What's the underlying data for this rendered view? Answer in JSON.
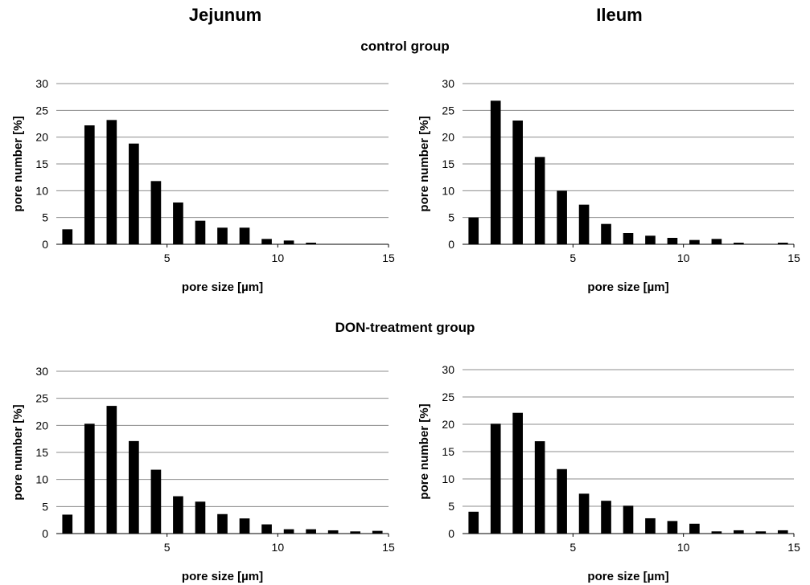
{
  "headers": {
    "jejunum": "Jejunum",
    "ileum": "Ileum",
    "control": "control group",
    "don": "DON-treatment group"
  },
  "chart_data": [
    {
      "type": "bar",
      "column": "Jejunum",
      "group": "control group",
      "xlabel": "pore size [µm]",
      "ylabel": "pore number [%]",
      "ylim": [
        0,
        30
      ],
      "xlim": [
        0,
        15
      ],
      "yticks": [
        "0",
        "5",
        "10",
        "15",
        "20",
        "25",
        "30"
      ],
      "xticks": [
        "5",
        "10",
        "15"
      ],
      "grid": true,
      "x": [
        1,
        2,
        3,
        4,
        5,
        6,
        7,
        8,
        9,
        10,
        11,
        12,
        13,
        14,
        15
      ],
      "values": [
        2.8,
        22.2,
        23.2,
        18.8,
        11.8,
        7.8,
        4.4,
        3.1,
        3.1,
        1.0,
        0.7,
        0.3,
        0.0,
        0.0,
        0.0
      ]
    },
    {
      "type": "bar",
      "column": "Ileum",
      "group": "control group",
      "xlabel": "pore size [µm]",
      "ylabel": "pore number [%]",
      "ylim": [
        0,
        30
      ],
      "xlim": [
        0,
        15
      ],
      "yticks": [
        "0",
        "5",
        "10",
        "15",
        "20",
        "25",
        "30"
      ],
      "xticks": [
        "5",
        "10",
        "15"
      ],
      "grid": true,
      "x": [
        1,
        2,
        3,
        4,
        5,
        6,
        7,
        8,
        9,
        10,
        11,
        12,
        13,
        14,
        15
      ],
      "values": [
        5.0,
        26.8,
        23.1,
        16.3,
        10.0,
        7.4,
        3.8,
        2.1,
        1.6,
        1.2,
        0.8,
        1.0,
        0.3,
        0.0,
        0.3
      ]
    },
    {
      "type": "bar",
      "column": "Jejunum",
      "group": "DON-treatment group",
      "xlabel": "pore size [µm]",
      "ylabel": "pore number [%]",
      "ylim": [
        0,
        30
      ],
      "xlim": [
        0,
        15
      ],
      "yticks": [
        "0",
        "5",
        "10",
        "15",
        "20",
        "25",
        "30"
      ],
      "xticks": [
        "5",
        "10",
        "15"
      ],
      "grid": true,
      "x": [
        1,
        2,
        3,
        4,
        5,
        6,
        7,
        8,
        9,
        10,
        11,
        12,
        13,
        14,
        15
      ],
      "values": [
        3.5,
        20.3,
        23.6,
        17.1,
        11.8,
        6.9,
        5.9,
        3.6,
        2.8,
        1.7,
        0.8,
        0.8,
        0.6,
        0.4,
        0.5
      ]
    },
    {
      "type": "bar",
      "column": "Ileum",
      "group": "DON-treatment group",
      "xlabel": "pore size [µm]",
      "ylabel": "pore number [%]",
      "ylim": [
        0,
        30
      ],
      "xlim": [
        0,
        15
      ],
      "yticks": [
        "0",
        "5",
        "10",
        "15",
        "20",
        "25",
        "30"
      ],
      "xticks": [
        "5",
        "10",
        "15"
      ],
      "grid": true,
      "x": [
        1,
        2,
        3,
        4,
        5,
        6,
        7,
        8,
        9,
        10,
        11,
        12,
        13,
        14,
        15
      ],
      "values": [
        4.0,
        20.1,
        22.1,
        16.9,
        11.8,
        7.3,
        6.0,
        5.1,
        2.8,
        2.3,
        1.8,
        0.4,
        0.6,
        0.4,
        0.6
      ]
    }
  ]
}
